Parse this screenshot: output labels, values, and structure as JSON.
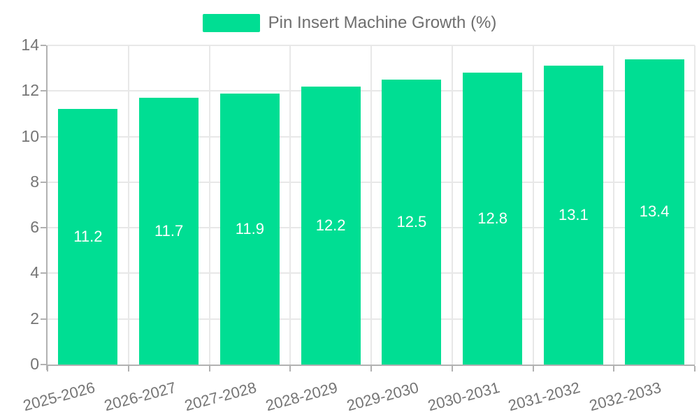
{
  "legend": {
    "label": "Pin Insert Machine Growth (%)",
    "swatch_color": "#00de93"
  },
  "chart_data": {
    "type": "bar",
    "categories": [
      "2025-2026",
      "2026-2027",
      "2027-2028",
      "2028-2029",
      "2029-2030",
      "2030-2031",
      "2031-2032",
      "2032-2033"
    ],
    "series": [
      {
        "name": "Pin Insert Machine Growth (%)",
        "values": [
          11.2,
          11.7,
          11.9,
          12.2,
          12.5,
          12.8,
          13.1,
          13.4
        ]
      }
    ],
    "data_labels": [
      "11.2",
      "11.7",
      "11.9",
      "12.2",
      "12.5",
      "12.8",
      "13.1",
      "13.4"
    ],
    "title": "",
    "xlabel": "",
    "ylabel": "",
    "ylim": [
      0,
      14
    ],
    "yticks": [
      0,
      2,
      4,
      6,
      8,
      10,
      12,
      14
    ],
    "grid": true,
    "legend_position": "top",
    "colors": {
      "bar": "#00de93",
      "value_label": "#ffffff",
      "axis_label": "#757575",
      "legend_text": "#6e6e6e",
      "gridline": "#e8e8e8",
      "axis_line": "#b1b1b1"
    }
  }
}
